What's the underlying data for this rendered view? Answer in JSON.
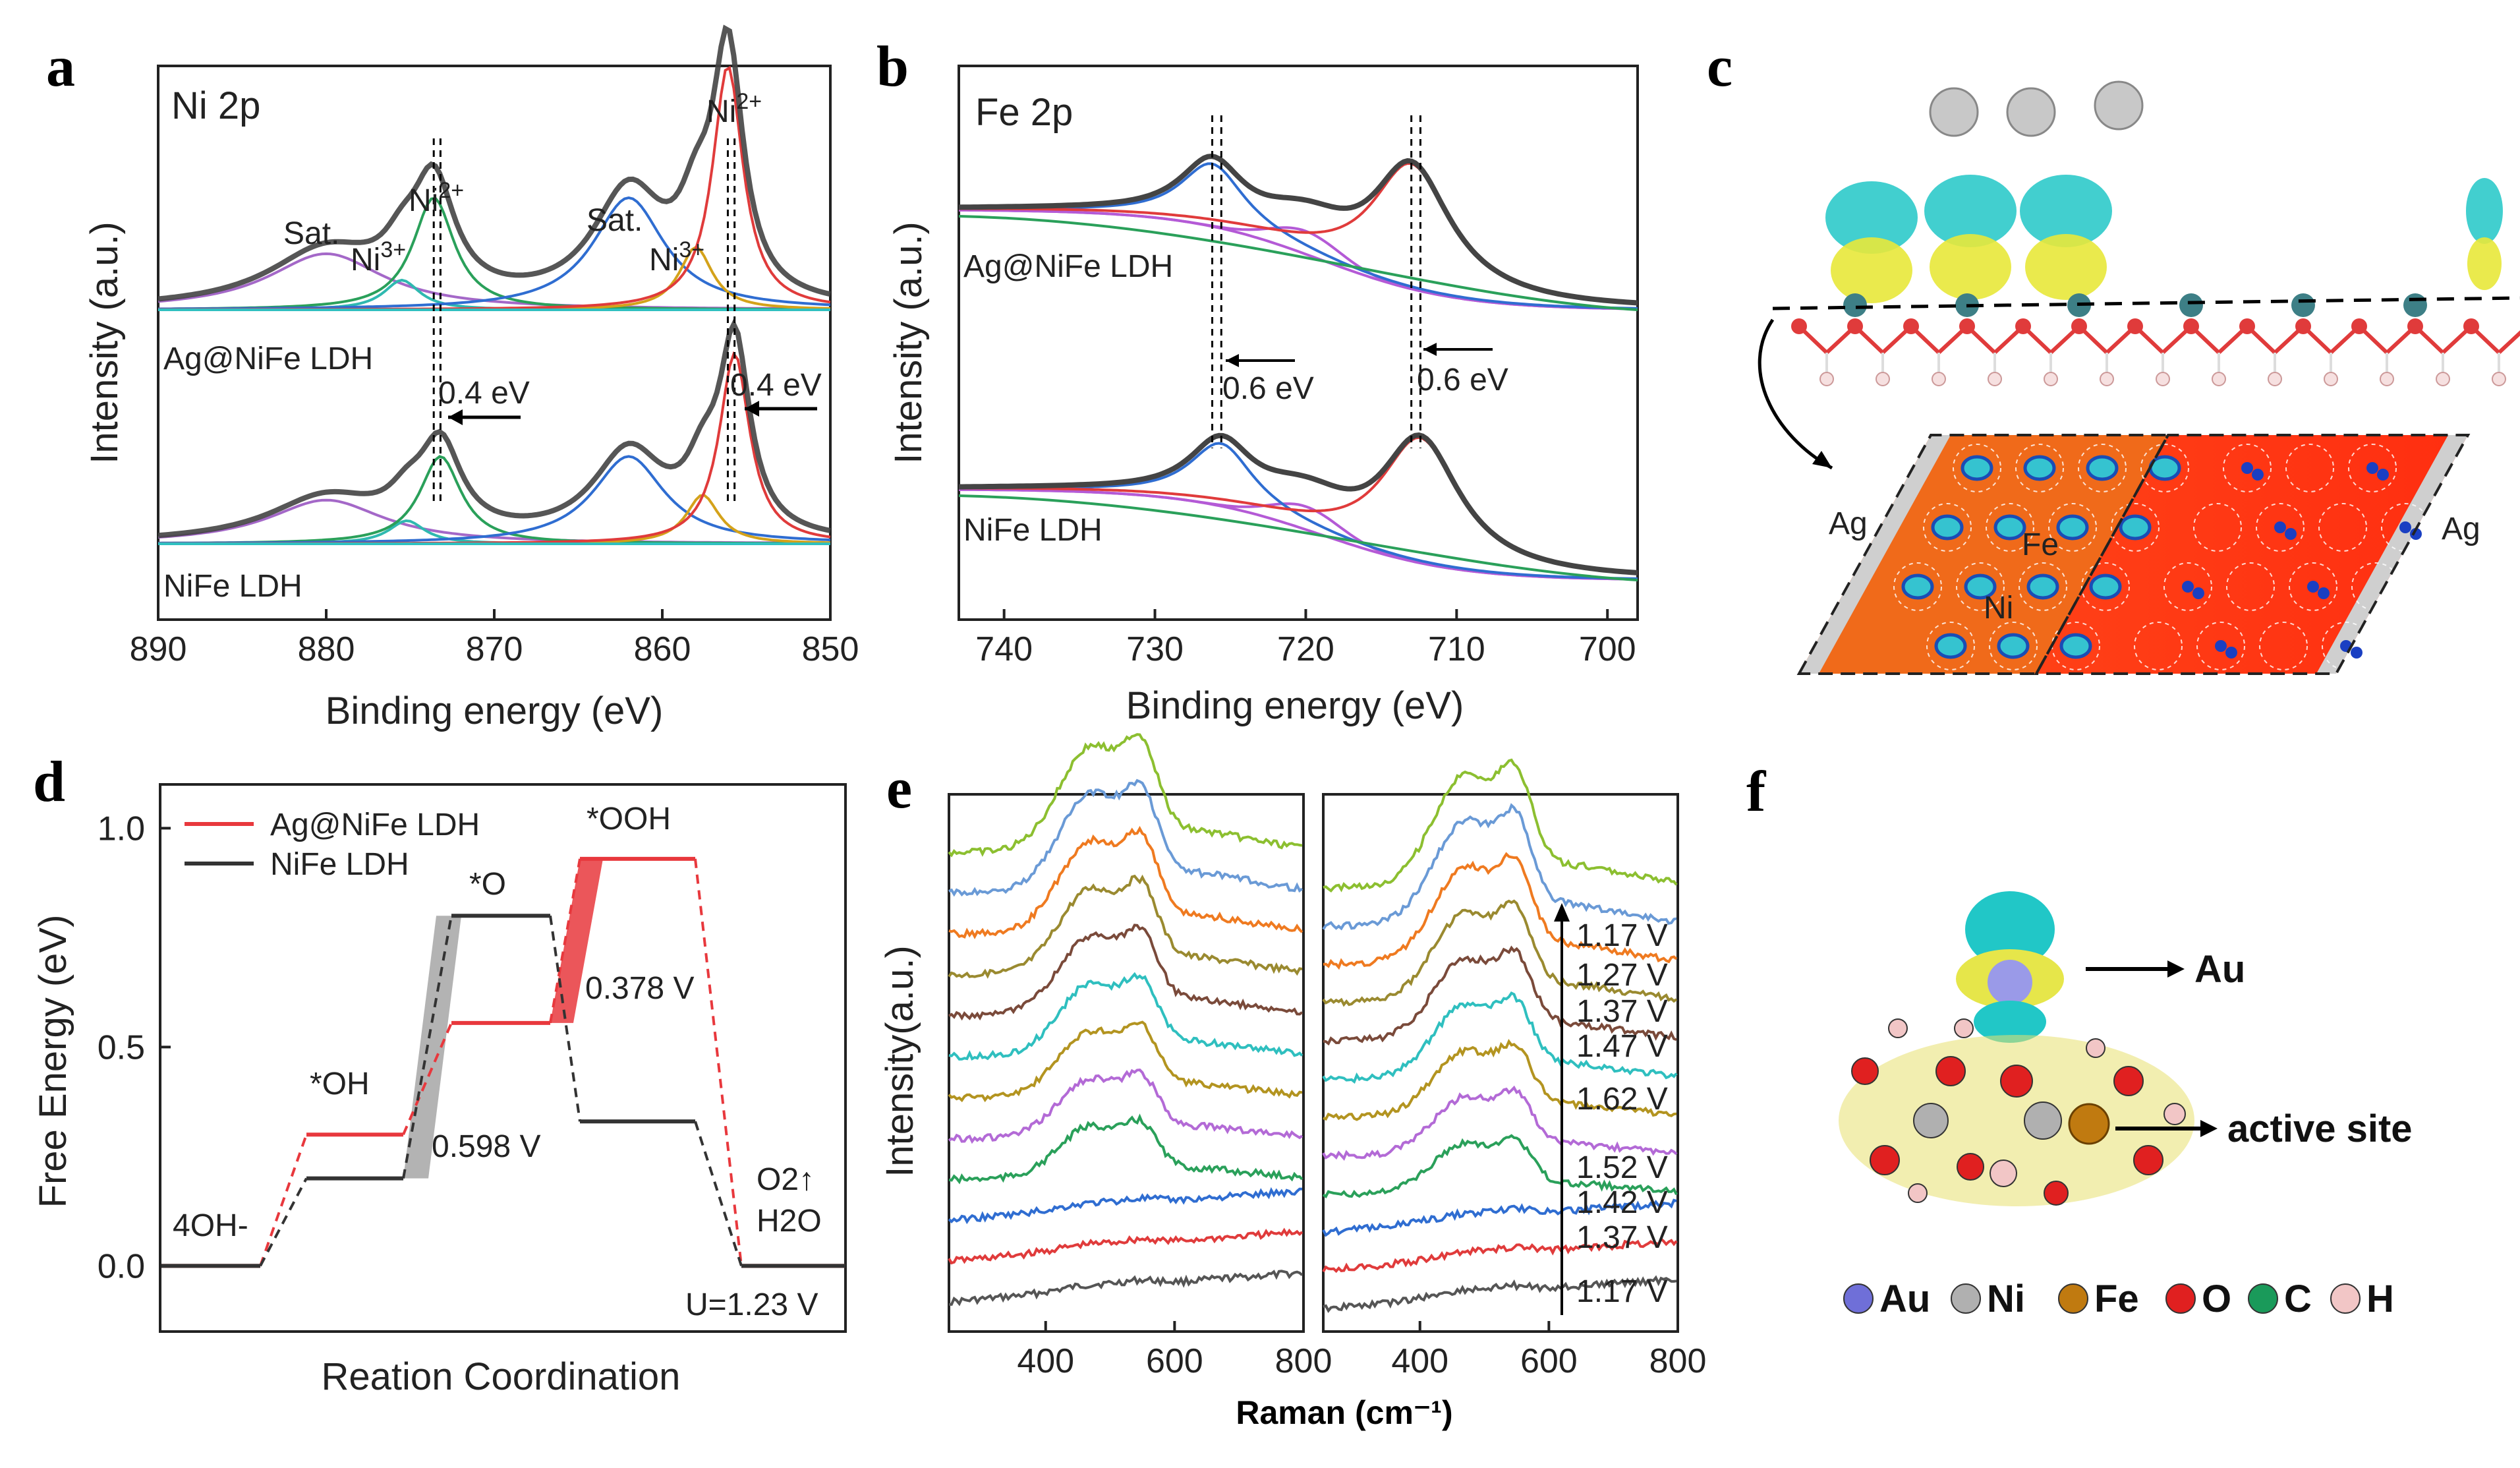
{
  "figure": {
    "panels": {
      "a": {
        "letter": "a",
        "title": "Ni 2p",
        "sample_top": "Ag@NiFe LDH",
        "sample_bottom": "NiFe LDH",
        "peak_labels": [
          "Sat.",
          "Ni3+",
          "Ni2+",
          "Sat.",
          "Ni3+",
          "Ni2+"
        ],
        "shift_labels": [
          "0.4 eV",
          "0.4 eV"
        ]
      },
      "b": {
        "letter": "b",
        "title": "Fe 2p",
        "sample_top": "Ag@NiFe LDH",
        "sample_bottom": "NiFe LDH",
        "shift_labels": [
          "0.6 eV",
          "0.6 eV"
        ]
      },
      "c": {
        "letter": "c",
        "atom_labels": [
          "Ag",
          "Fe",
          "Ni",
          "Ag"
        ]
      },
      "d": {
        "letter": "d",
        "state_labels": [
          "4OH-",
          "*OH",
          "*O",
          "*OOH",
          "O2↑",
          "H2O"
        ],
        "barrier_labels": [
          "0.598 V",
          "0.378 V"
        ],
        "potential_label": "U=1.23 V"
      },
      "e": {
        "letter": "e",
        "right_voltages": [
          "1.17 V",
          "1.27 V",
          "1.37 V",
          "1.47 V",
          "1.62 V",
          "1.52 V",
          "1.42 V",
          "1.37 V",
          "1.17 V"
        ],
        "shared_xlabel": "Raman (cm⁻¹)"
      },
      "f": {
        "letter": "f",
        "callouts": [
          "Au",
          "active site"
        ],
        "legend": [
          {
            "symbol": "Au",
            "color": "#6f6fd8"
          },
          {
            "symbol": "Ni",
            "color": "#b0b0b0"
          },
          {
            "symbol": "Fe",
            "color": "#c07a10"
          },
          {
            "symbol": "O",
            "color": "#e02020"
          },
          {
            "symbol": "C",
            "color": "#1a9a5a"
          },
          {
            "symbol": "H",
            "color": "#f2c6c6"
          }
        ]
      }
    }
  },
  "chart_data": [
    {
      "type": "line",
      "panel": "a",
      "title": "Ni 2p",
      "xlabel": "Binding energy (eV)",
      "ylabel": "Intensity (a.u.)",
      "xlim": [
        890,
        850
      ],
      "x_ticks": [
        890,
        880,
        870,
        860,
        850
      ],
      "series": [
        {
          "name": "Ag@NiFe LDH",
          "peaks": [
            {
              "label": "Sat.",
              "x": 880
            },
            {
              "label": "Ni3+",
              "x": 875.5
            },
            {
              "label": "Ni2+",
              "x": 873.6
            },
            {
              "label": "Sat.",
              "x": 862
            },
            {
              "label": "Ni3+",
              "x": 858
            },
            {
              "label": "Ni2+",
              "x": 856.1
            }
          ]
        },
        {
          "name": "NiFe LDH",
          "peaks": [
            {
              "label": "Sat.",
              "x": 880
            },
            {
              "label": "Ni3+",
              "x": 875.2
            },
            {
              "label": "Ni2+",
              "x": 873.2
            },
            {
              "label": "Sat.",
              "x": 862
            },
            {
              "label": "Ni3+",
              "x": 857.6
            },
            {
              "label": "Ni2+",
              "x": 855.7
            }
          ]
        }
      ]
    },
    {
      "type": "line",
      "panel": "b",
      "title": "Fe 2p",
      "xlabel": "Binding energy (eV)",
      "ylabel": "Intensity (a.u.)",
      "xlim": [
        743,
        698
      ],
      "x_ticks": [
        740,
        730,
        720,
        710,
        700
      ],
      "series": [
        {
          "name": "Ag@NiFe LDH",
          "peaks": [
            {
              "x": 726.2
            },
            {
              "x": 713
            }
          ]
        },
        {
          "name": "NiFe LDH",
          "peaks": [
            {
              "x": 725.6
            },
            {
              "x": 712.4
            }
          ]
        }
      ]
    },
    {
      "type": "line",
      "panel": "d",
      "xlabel": "Reation Coordination",
      "ylabel": "Free Energy (eV)",
      "ylim": [
        -0.15,
        1.1
      ],
      "y_ticks": [
        0.0,
        0.5,
        1.0
      ],
      "categories": [
        "4OH-",
        "*OH",
        "*O",
        "*OOH",
        "O2 H2O"
      ],
      "series": [
        {
          "name": "Ag@NiFe LDH",
          "color": "#e8383d",
          "values": [
            0.0,
            0.3,
            0.555,
            0.93,
            0.0
          ]
        },
        {
          "name": "NiFe LDH",
          "color": "#333333",
          "values": [
            0.0,
            0.2,
            0.8,
            0.33,
            0.0
          ]
        }
      ]
    },
    {
      "type": "line",
      "panel": "e",
      "xlabel": "Raman (cm⁻¹)",
      "ylabel": "Intensity(a.u.)",
      "subplots": [
        {
          "xlim": [
            250,
            800
          ],
          "x_ticks": [
            400,
            600,
            800
          ],
          "n_spectra": 12
        },
        {
          "xlim": [
            250,
            800
          ],
          "x_ticks": [
            400,
            600,
            800
          ],
          "labels": [
            "1.17 V",
            "1.27 V",
            "1.37 V",
            "1.47 V",
            "1.62 V",
            "1.52 V",
            "1.42 V",
            "1.37 V",
            "1.17 V"
          ]
        }
      ]
    }
  ]
}
